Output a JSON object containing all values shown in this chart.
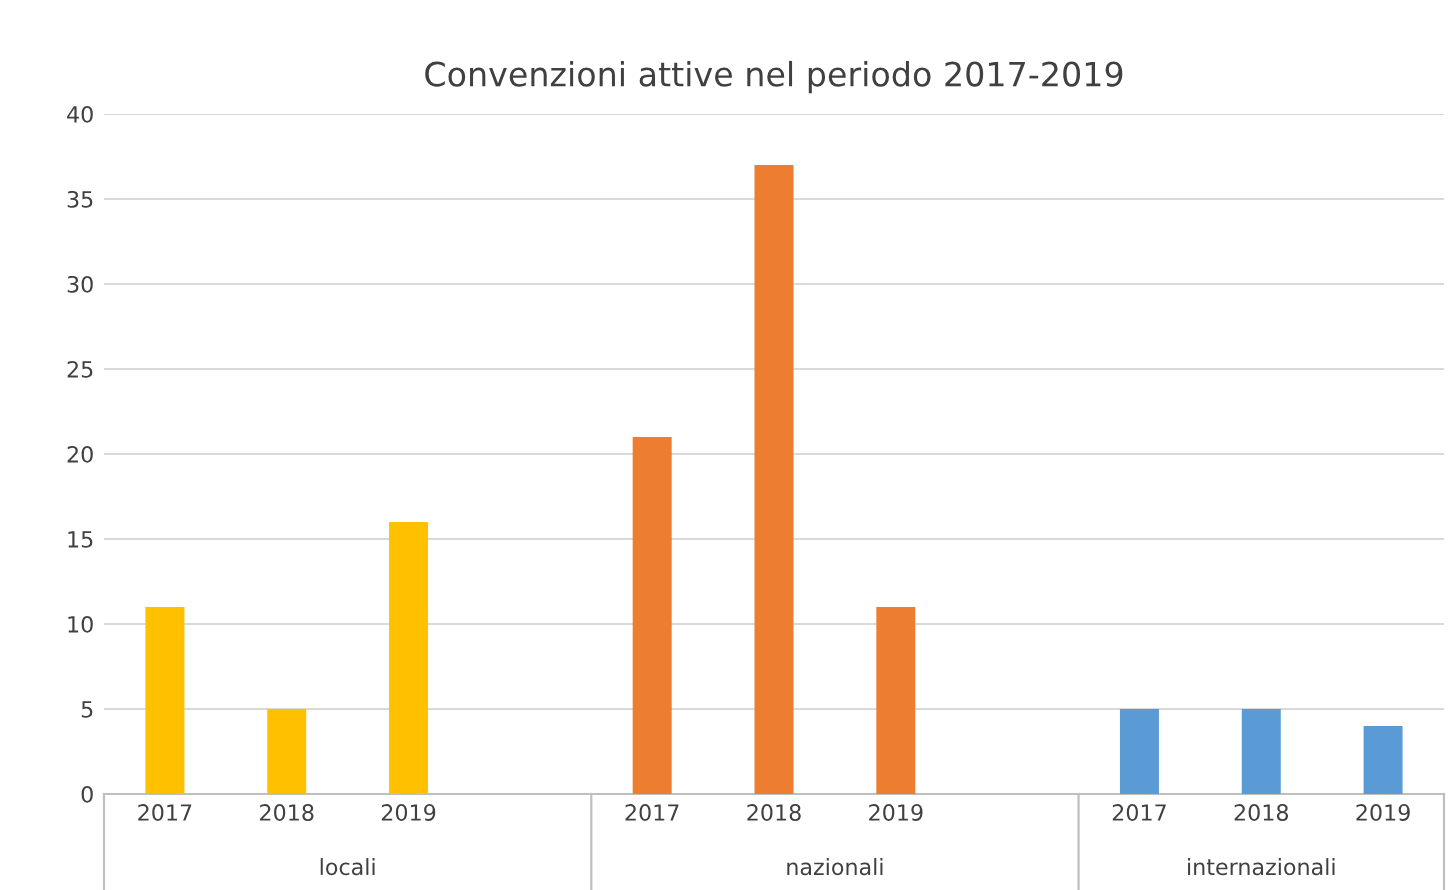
{
  "chart_data": {
    "type": "bar",
    "title": "Convenzioni attive nel periodo 2017-2019",
    "categories": [
      "2017",
      "2018",
      "2019",
      null,
      "2017",
      "2018",
      "2019",
      null,
      "2017",
      "2018",
      "2019"
    ],
    "values": [
      11,
      5,
      16,
      null,
      21,
      37,
      11,
      null,
      5,
      5,
      4
    ],
    "colors": [
      "#ffc000",
      "#ffc000",
      "#ffc000",
      "#ffffff",
      "#ed7d31",
      "#ed7d31",
      "#ed7d31",
      "#ffffff",
      "#5b9bd5",
      "#5b9bd5",
      "#5b9bd5"
    ],
    "annotations": [
      "locali",
      "nazionali",
      "internazionali"
    ],
    "ylim": [
      0,
      40
    ],
    "yticks": [
      0,
      5,
      10,
      15,
      20,
      25,
      30,
      35,
      40
    ],
    "grid": "y"
  }
}
